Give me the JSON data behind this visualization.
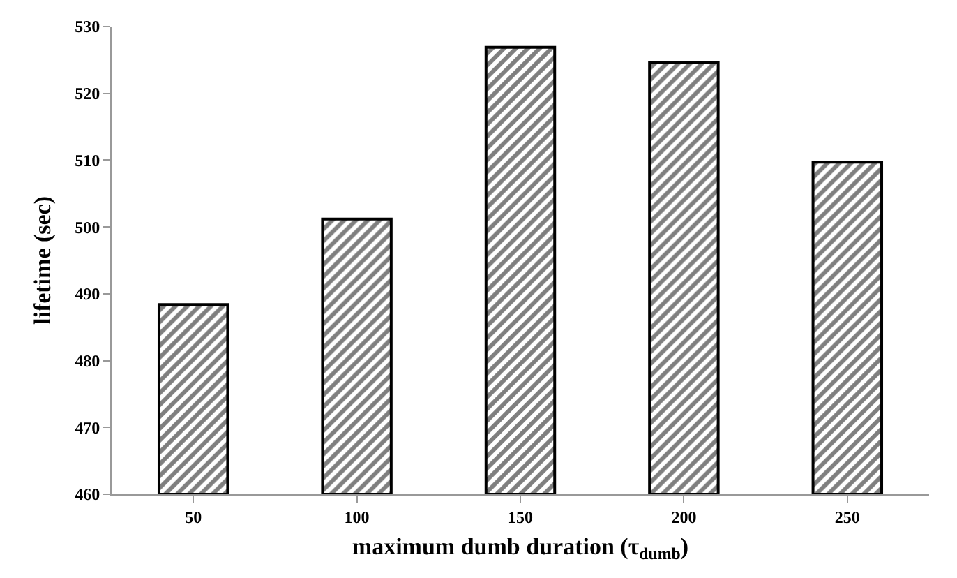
{
  "chart_data": {
    "type": "bar",
    "xlabel": "maximum dumb duration (τ$_{dumb}$)",
    "ylabel": "lifetime (sec)",
    "categories": [
      "50",
      "100",
      "150",
      "200",
      "250"
    ],
    "values": [
      488.4,
      501.2,
      526.9,
      524.6,
      509.7
    ],
    "color": "#000000",
    "ylim": [
      460,
      530
    ],
    "yticks": [
      460,
      470,
      480,
      490,
      500,
      510,
      520,
      530
    ]
  }
}
